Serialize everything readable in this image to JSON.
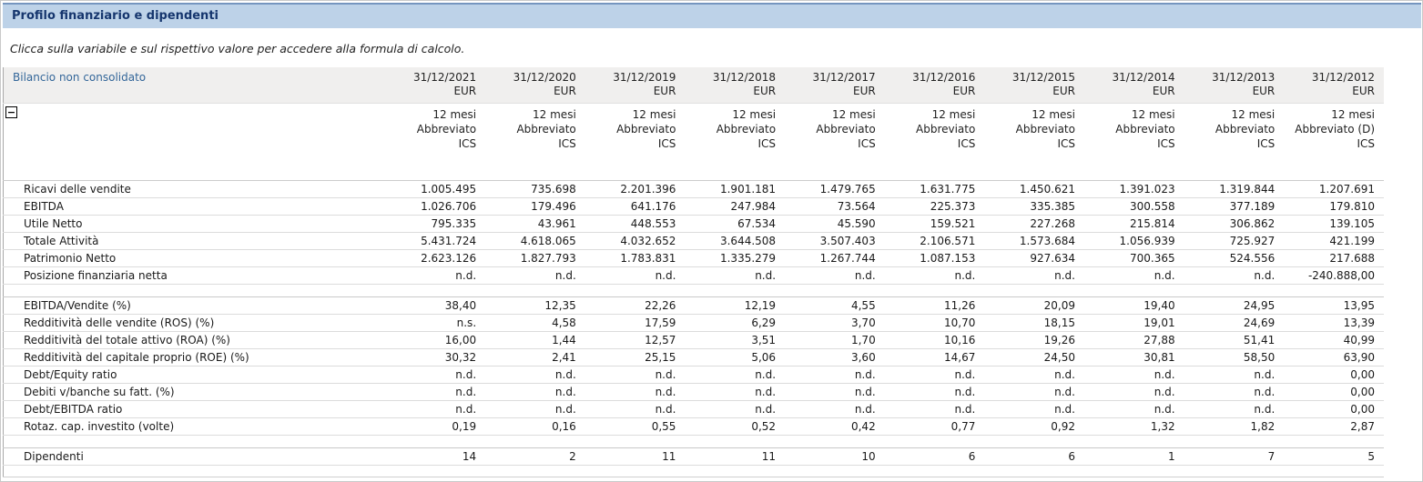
{
  "title": "Profilo finanziario e dipendenti",
  "instruction": "Clicca sulla variabile e sul rispettivo valore per accedere alla formula di calcolo.",
  "icons": {
    "collapse": "−"
  },
  "colors": {
    "title_bar_bg": "#bdd2e8",
    "title_text": "#16366e",
    "link_blue": "#336699",
    "header_band_bg": "#f0efee",
    "row_border": "#dcdcdc",
    "scrollbar": "#9d9d9d"
  },
  "table": {
    "header_label": "Bilancio non consolidato",
    "currency": "EUR",
    "columns": [
      "31/12/2021",
      "31/12/2020",
      "31/12/2019",
      "31/12/2018",
      "31/12/2017",
      "31/12/2016",
      "31/12/2015",
      "31/12/2014",
      "31/12/2013",
      "31/12/2012"
    ],
    "column_meta": [
      {
        "period": "12 mesi",
        "report": "Abbreviato",
        "standard": "ICS"
      },
      {
        "period": "12 mesi",
        "report": "Abbreviato",
        "standard": "ICS"
      },
      {
        "period": "12 mesi",
        "report": "Abbreviato",
        "standard": "ICS"
      },
      {
        "period": "12 mesi",
        "report": "Abbreviato",
        "standard": "ICS"
      },
      {
        "period": "12 mesi",
        "report": "Abbreviato",
        "standard": "ICS"
      },
      {
        "period": "12 mesi",
        "report": "Abbreviato",
        "standard": "ICS"
      },
      {
        "period": "12 mesi",
        "report": "Abbreviato",
        "standard": "ICS"
      },
      {
        "period": "12 mesi",
        "report": "Abbreviato",
        "standard": "ICS"
      },
      {
        "period": "12 mesi",
        "report": "Abbreviato",
        "standard": "ICS"
      },
      {
        "period": "12 mesi",
        "report": "Abbreviato (D)",
        "standard": "ICS"
      }
    ],
    "sections": [
      {
        "name": "valori",
        "rows": [
          {
            "label": "Ricavi delle vendite",
            "values": [
              "1.005.495",
              "735.698",
              "2.201.396",
              "1.901.181",
              "1.479.765",
              "1.631.775",
              "1.450.621",
              "1.391.023",
              "1.319.844",
              "1.207.691"
            ]
          },
          {
            "label": "EBITDA",
            "values": [
              "1.026.706",
              "179.496",
              "641.176",
              "247.984",
              "73.564",
              "225.373",
              "335.385",
              "300.558",
              "377.189",
              "179.810"
            ]
          },
          {
            "label": "Utile Netto",
            "values": [
              "795.335",
              "43.961",
              "448.553",
              "67.534",
              "45.590",
              "159.521",
              "227.268",
              "215.814",
              "306.862",
              "139.105"
            ]
          },
          {
            "label": "Totale Attività",
            "values": [
              "5.431.724",
              "4.618.065",
              "4.032.652",
              "3.644.508",
              "3.507.403",
              "2.106.571",
              "1.573.684",
              "1.056.939",
              "725.927",
              "421.199"
            ]
          },
          {
            "label": "Patrimonio Netto",
            "values": [
              "2.623.126",
              "1.827.793",
              "1.783.831",
              "1.335.279",
              "1.267.744",
              "1.087.153",
              "927.634",
              "700.365",
              "524.556",
              "217.688"
            ]
          },
          {
            "label": "Posizione finanziaria netta",
            "values": [
              "n.d.",
              "n.d.",
              "n.d.",
              "n.d.",
              "n.d.",
              "n.d.",
              "n.d.",
              "n.d.",
              "n.d.",
              "-240.888,00"
            ]
          }
        ]
      },
      {
        "name": "indici",
        "rows": [
          {
            "label": "EBITDA/Vendite (%)",
            "values": [
              "38,40",
              "12,35",
              "22,26",
              "12,19",
              "4,55",
              "11,26",
              "20,09",
              "19,40",
              "24,95",
              "13,95"
            ]
          },
          {
            "label": "Redditività delle vendite (ROS) (%)",
            "values": [
              "n.s.",
              "4,58",
              "17,59",
              "6,29",
              "3,70",
              "10,70",
              "18,15",
              "19,01",
              "24,69",
              "13,39"
            ]
          },
          {
            "label": "Redditività del totale attivo (ROA) (%)",
            "values": [
              "16,00",
              "1,44",
              "12,57",
              "3,51",
              "1,70",
              "10,16",
              "19,26",
              "27,88",
              "51,41",
              "40,99"
            ]
          },
          {
            "label": "Redditività del capitale proprio (ROE) (%)",
            "values": [
              "30,32",
              "2,41",
              "25,15",
              "5,06",
              "3,60",
              "14,67",
              "24,50",
              "30,81",
              "58,50",
              "63,90"
            ]
          },
          {
            "label": "Debt/Equity ratio",
            "values": [
              "n.d.",
              "n.d.",
              "n.d.",
              "n.d.",
              "n.d.",
              "n.d.",
              "n.d.",
              "n.d.",
              "n.d.",
              "0,00"
            ]
          },
          {
            "label": "Debiti v/banche su fatt. (%)",
            "values": [
              "n.d.",
              "n.d.",
              "n.d.",
              "n.d.",
              "n.d.",
              "n.d.",
              "n.d.",
              "n.d.",
              "n.d.",
              "0,00"
            ]
          },
          {
            "label": "Debt/EBITDA ratio",
            "values": [
              "n.d.",
              "n.d.",
              "n.d.",
              "n.d.",
              "n.d.",
              "n.d.",
              "n.d.",
              "n.d.",
              "n.d.",
              "0,00"
            ]
          },
          {
            "label": "Rotaz. cap. investito (volte)",
            "values": [
              "0,19",
              "0,16",
              "0,55",
              "0,52",
              "0,42",
              "0,77",
              "0,92",
              "1,32",
              "1,82",
              "2,87"
            ]
          }
        ]
      },
      {
        "name": "dipendenti",
        "rows": [
          {
            "label": "Dipendenti",
            "values": [
              "14",
              "2",
              "11",
              "11",
              "10",
              "6",
              "6",
              "1",
              "7",
              "5"
            ]
          }
        ]
      }
    ]
  }
}
